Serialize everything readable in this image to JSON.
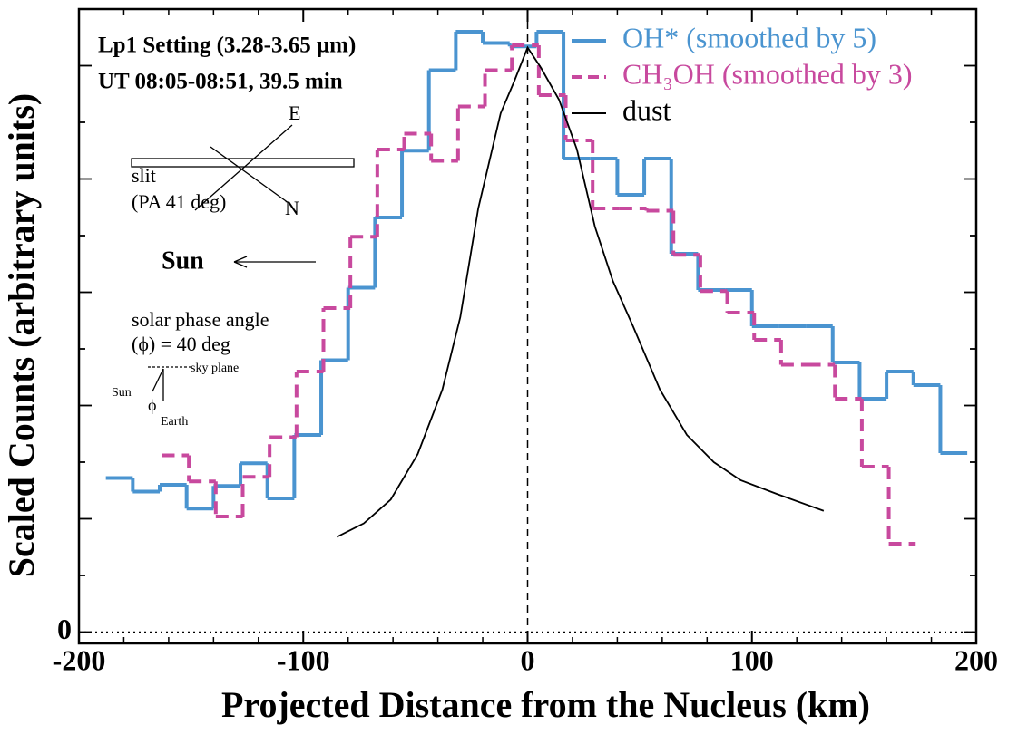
{
  "chart_data": {
    "type": "step",
    "xlabel": "Projected Distance from the Nucleus (km)",
    "ylabel": "Scaled Counts (arbitrary units)",
    "xlim": [
      -200,
      200
    ],
    "xticks": [
      -200,
      -100,
      0,
      100,
      200
    ],
    "ylim": [
      -0.1,
      5.5
    ],
    "yticks": [
      0
    ],
    "series": [
      {
        "name": "OH* (smoothed by 5)",
        "color": "#4a94d0",
        "style": "solid",
        "x": [
          -182,
          -170,
          -158,
          -146,
          -134,
          -122,
          -110,
          -98,
          -86,
          -74,
          -62,
          -50,
          -38,
          -26,
          -14,
          -2,
          10,
          22,
          34,
          46,
          58,
          70,
          82,
          94,
          106,
          118,
          130,
          142,
          154,
          166,
          178,
          190
        ],
        "values": [
          1.36,
          1.24,
          1.3,
          1.09,
          1.29,
          1.49,
          1.18,
          1.74,
          2.4,
          3.04,
          3.66,
          4.25,
          4.96,
          5.3,
          5.2,
          5.17,
          5.3,
          4.18,
          4.18,
          3.86,
          4.18,
          3.34,
          3.02,
          3.02,
          2.7,
          2.7,
          2.7,
          2.38,
          2.06,
          2.3,
          2.18,
          1.58
        ]
      },
      {
        "name": "CH₃OH (smoothed by 3)",
        "color": "#c8499e",
        "style": "dashed",
        "x": [
          -157,
          -145,
          -133,
          -121,
          -109,
          -97,
          -85,
          -73,
          -61,
          -49,
          -37,
          -25,
          -13,
          -1,
          11,
          23,
          35,
          47,
          59,
          71,
          83,
          95,
          107,
          119,
          131,
          143,
          155,
          167
        ],
        "values": [
          1.56,
          1.33,
          1.02,
          1.37,
          1.72,
          2.3,
          2.86,
          3.49,
          4.26,
          4.4,
          4.16,
          4.64,
          4.96,
          5.18,
          4.74,
          4.34,
          3.74,
          3.74,
          3.72,
          3.33,
          3.01,
          2.82,
          2.58,
          2.36,
          2.36,
          2.06,
          1.46,
          0.78
        ]
      },
      {
        "name": "dust",
        "color": "#000000",
        "style": "line",
        "x": [
          -85,
          -73,
          -61,
          -49,
          -38,
          -30,
          -22,
          -12,
          -6,
          0,
          6,
          14,
          22,
          30,
          38,
          47,
          59,
          71,
          83,
          95,
          111,
          132
        ],
        "values": [
          0.84,
          0.96,
          1.17,
          1.57,
          2.14,
          2.78,
          3.74,
          4.58,
          4.86,
          5.16,
          4.98,
          4.7,
          4.26,
          3.58,
          3.1,
          2.7,
          2.14,
          1.74,
          1.5,
          1.34,
          1.22,
          1.07
        ]
      }
    ],
    "annotations": [
      "Lp1 Setting (3.28-3.65 μm)",
      "UT 08:05-08:51, 39.5 min",
      "E",
      "slit",
      "(PA 41 deg)",
      "N",
      "Sun",
      "solar phase angle",
      "(ϕ) = 40 deg",
      "sky plane",
      "Sun",
      "ϕ",
      "Earth"
    ]
  }
}
